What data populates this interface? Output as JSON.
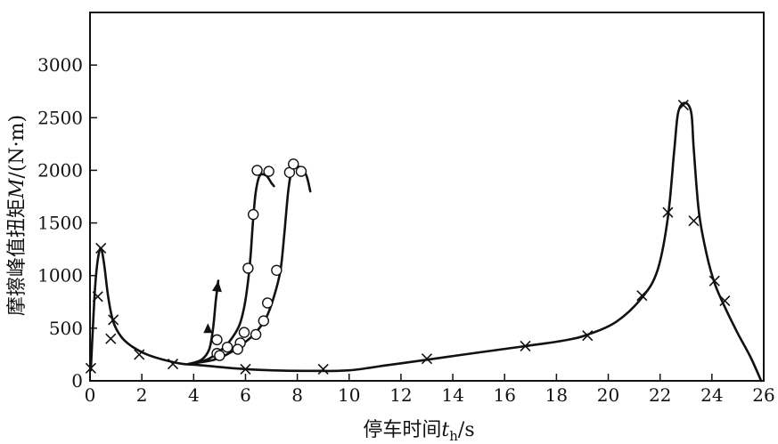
{
  "chart_data": {
    "type": "line",
    "title": "",
    "xlabel": "停车时间t_h/s",
    "ylabel": "摩擦峰值扭矩M/(N·m)",
    "xlabel_parts": {
      "prefix": "停车时间",
      "var": "t",
      "sub": "h",
      "unit": "/s"
    },
    "ylabel_parts": {
      "prefix": "摩擦峰值扭矩",
      "var": "M",
      "unit": "/(N·m)"
    },
    "xlim": [
      0,
      26
    ],
    "ylim": [
      0,
      3500
    ],
    "xticks": [
      0,
      2,
      4,
      6,
      8,
      10,
      12,
      14,
      16,
      18,
      20,
      22,
      24,
      26
    ],
    "yticks": [
      0,
      500,
      1000,
      1500,
      2000,
      2500,
      3000
    ],
    "grid": false,
    "legend": "none",
    "series": [
      {
        "marker": "x",
        "curve": [
          [
            0.03,
            100
          ],
          [
            0.1,
            450
          ],
          [
            0.2,
            900
          ],
          [
            0.3,
            1150
          ],
          [
            0.42,
            1260
          ],
          [
            0.55,
            1100
          ],
          [
            0.7,
            800
          ],
          [
            0.9,
            560
          ],
          [
            1.2,
            420
          ],
          [
            1.6,
            330
          ],
          [
            2.2,
            250
          ],
          [
            3.0,
            190
          ],
          [
            3.6,
            160
          ],
          [
            4.2,
            150
          ],
          [
            5.5,
            120
          ],
          [
            7.0,
            100
          ],
          [
            8.5,
            95
          ],
          [
            10.0,
            100
          ],
          [
            11.5,
            150
          ],
          [
            13.0,
            200
          ],
          [
            15.0,
            270
          ],
          [
            16.8,
            330
          ],
          [
            18.2,
            380
          ],
          [
            19.1,
            430
          ],
          [
            20.3,
            560
          ],
          [
            21.3,
            790
          ],
          [
            21.9,
            1050
          ],
          [
            22.3,
            1550
          ],
          [
            22.55,
            2200
          ],
          [
            22.7,
            2550
          ],
          [
            22.95,
            2640
          ],
          [
            23.2,
            2550
          ],
          [
            23.3,
            2200
          ],
          [
            23.5,
            1600
          ],
          [
            23.8,
            1200
          ],
          [
            24.1,
            930
          ],
          [
            24.5,
            700
          ],
          [
            25.0,
            450
          ],
          [
            25.5,
            220
          ],
          [
            25.9,
            0
          ]
        ],
        "markers": [
          [
            0.03,
            120
          ],
          [
            0.42,
            1260
          ],
          [
            0.3,
            800
          ],
          [
            0.8,
            400
          ],
          [
            0.9,
            580
          ],
          [
            1.9,
            250
          ],
          [
            3.2,
            160
          ],
          [
            6.0,
            110
          ],
          [
            9.0,
            110
          ],
          [
            13.0,
            210
          ],
          [
            16.8,
            330
          ],
          [
            19.2,
            430
          ],
          [
            21.3,
            810
          ],
          [
            22.3,
            1600
          ],
          [
            22.9,
            2620
          ],
          [
            23.3,
            1520
          ],
          [
            24.1,
            950
          ],
          [
            24.5,
            760
          ]
        ]
      },
      {
        "marker": "arrow",
        "curve": [
          [
            3.8,
            160
          ],
          [
            4.3,
            200
          ],
          [
            4.6,
            300
          ],
          [
            4.75,
            500
          ],
          [
            4.85,
            750
          ],
          [
            4.95,
            950
          ]
        ],
        "markers": [
          [
            4.55,
            480
          ]
        ]
      },
      {
        "marker": "o",
        "curve": [
          [
            3.8,
            160
          ],
          [
            4.5,
            200
          ],
          [
            5.0,
            280
          ],
          [
            5.4,
            380
          ],
          [
            5.75,
            520
          ],
          [
            5.95,
            700
          ],
          [
            6.1,
            950
          ],
          [
            6.2,
            1200
          ],
          [
            6.3,
            1550
          ],
          [
            6.4,
            1800
          ],
          [
            6.55,
            1950
          ],
          [
            6.8,
            1950
          ],
          [
            7.0,
            1880
          ],
          [
            7.1,
            1850
          ]
        ],
        "markers": [
          [
            4.9,
            390
          ],
          [
            4.9,
            260
          ],
          [
            5.3,
            320
          ],
          [
            5.8,
            360
          ],
          [
            5.95,
            460
          ],
          [
            6.1,
            1070
          ],
          [
            6.3,
            1580
          ],
          [
            6.45,
            2000
          ],
          [
            6.9,
            1990
          ]
        ]
      },
      {
        "marker": "o",
        "curve": [
          [
            3.8,
            160
          ],
          [
            4.8,
            200
          ],
          [
            5.5,
            280
          ],
          [
            6.0,
            370
          ],
          [
            6.4,
            460
          ],
          [
            6.8,
            600
          ],
          [
            7.1,
            800
          ],
          [
            7.35,
            1050
          ],
          [
            7.5,
            1400
          ],
          [
            7.65,
            1800
          ],
          [
            7.8,
            2000
          ],
          [
            8.1,
            2030
          ],
          [
            8.35,
            1950
          ],
          [
            8.5,
            1800
          ]
        ],
        "markers": [
          [
            5.0,
            240
          ],
          [
            5.7,
            300
          ],
          [
            6.4,
            440
          ],
          [
            6.7,
            570
          ],
          [
            6.85,
            740
          ],
          [
            7.2,
            1050
          ],
          [
            7.7,
            1980
          ],
          [
            7.85,
            2060
          ],
          [
            8.15,
            1990
          ]
        ]
      }
    ]
  }
}
